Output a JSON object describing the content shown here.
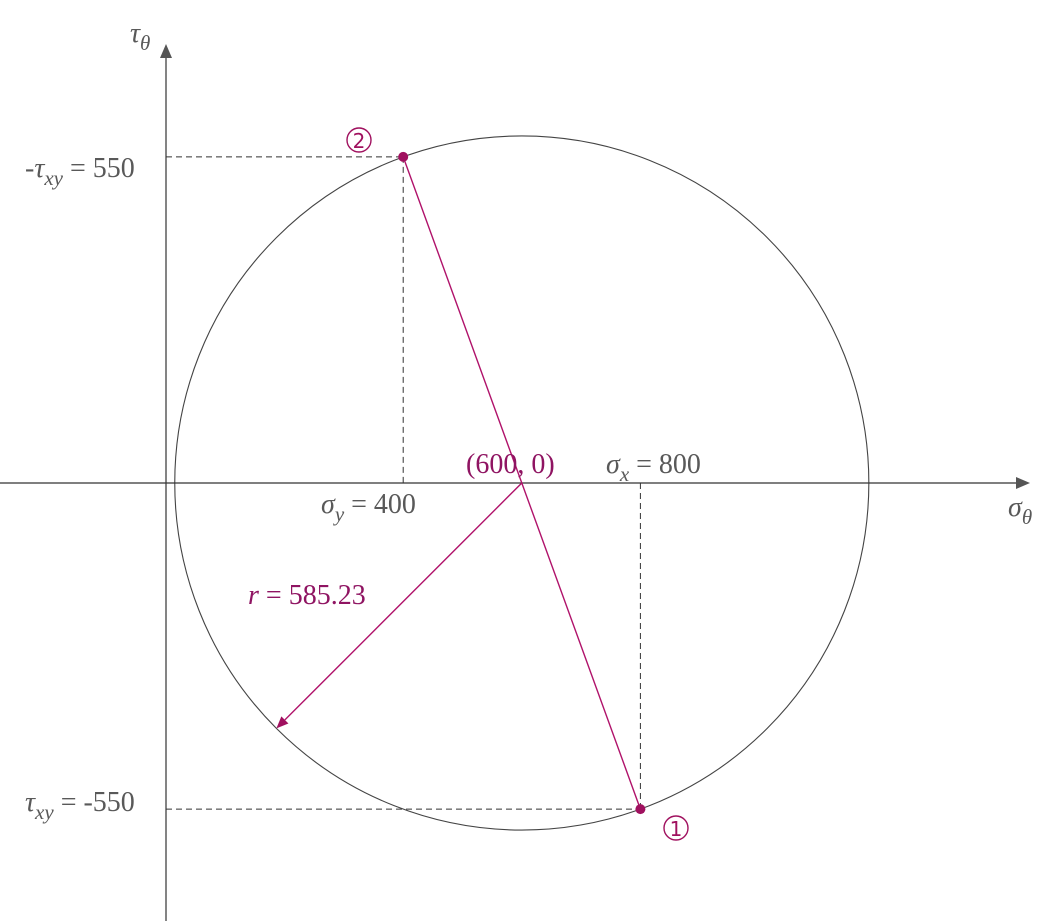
{
  "axes": {
    "y_symbol": "τ",
    "y_sub": "θ",
    "x_symbol": "σ",
    "x_sub": "θ"
  },
  "labels": {
    "neg_txy": {
      "prefix": "-",
      "symbol": "τ",
      "sub": "xy",
      "value": " = 550"
    },
    "txy": {
      "prefix": "",
      "symbol": "τ",
      "sub": "xy",
      "value": " = -550"
    },
    "sigma_y": {
      "symbol": "σ",
      "sub": "y",
      "value": " = 400"
    },
    "sigma_x": {
      "symbol": "σ",
      "sub": "x",
      "value": " = 800"
    },
    "center": "(600, 0)",
    "radius": {
      "symbol": "r",
      "value": " = 585.23"
    }
  },
  "points": {
    "p1": {
      "badge": "1",
      "sigma": 800,
      "tau": -550
    },
    "p2": {
      "badge": "2",
      "sigma": 400,
      "tau": 550
    }
  },
  "circle": {
    "center_sigma": 600,
    "center_tau": 0,
    "radius": 585.23
  },
  "colors": {
    "accent": "#a0115f",
    "axis": "#333333",
    "text": "#595959"
  }
}
